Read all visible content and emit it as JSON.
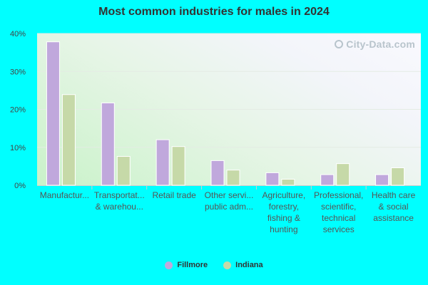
{
  "chart_data": {
    "type": "bar",
    "title": "Most common industries for males in 2024",
    "categories": [
      [
        "Manufactur..."
      ],
      [
        "Transportat...",
        "& warehou..."
      ],
      [
        "Retail trade"
      ],
      [
        "Other servi...",
        "public adm..."
      ],
      [
        "Agriculture,",
        "forestry,",
        "fishing &",
        "hunting"
      ],
      [
        "Professional,",
        "scientific,",
        "technical",
        "services"
      ],
      [
        "Health care",
        "& social",
        "assistance"
      ]
    ],
    "series": [
      {
        "name": "Fillmore",
        "color": "#c0a8dc",
        "values": [
          37.8,
          21.7,
          12.0,
          6.5,
          3.3,
          2.8,
          2.8
        ]
      },
      {
        "name": "Indiana",
        "color": "#c6d9a8",
        "values": [
          23.9,
          7.6,
          10.2,
          4.0,
          1.6,
          5.7,
          4.6
        ]
      }
    ],
    "yticks": [
      "0%",
      "10%",
      "20%",
      "30%",
      "40%"
    ],
    "ylim": [
      0,
      40
    ],
    "grid": true,
    "legend_position": "bottom"
  },
  "watermark": "City-Data.com"
}
